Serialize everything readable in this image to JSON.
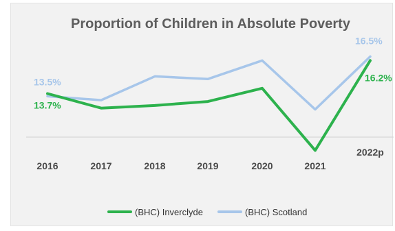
{
  "chart_data": {
    "type": "line",
    "title": "Proportion of Children in Absolute Poverty",
    "xlabel": "",
    "ylabel": "",
    "categories": [
      "2016",
      "2017",
      "2018",
      "2019",
      "2020",
      "2021",
      "2022p"
    ],
    "series": [
      {
        "name": "(BHC) Inverclyde",
        "color": "#2db24d",
        "values": [
          13.7,
          12.6,
          12.8,
          13.1,
          14.1,
          9.4,
          16.2
        ]
      },
      {
        "name": "(BHC) Scotland",
        "color": "#a7c6ea",
        "values": [
          13.5,
          13.2,
          15.0,
          14.8,
          16.2,
          12.5,
          16.5
        ]
      }
    ],
    "data_labels": [
      {
        "series": 1,
        "index": 0,
        "text": "13.5%"
      },
      {
        "series": 0,
        "index": 0,
        "text": "13.7%"
      },
      {
        "series": 1,
        "index": 6,
        "text": "16.5%"
      },
      {
        "series": 0,
        "index": 6,
        "text": "16.2%"
      }
    ],
    "ylim": [
      6,
      20
    ],
    "grid": false,
    "legend_position": "bottom"
  }
}
